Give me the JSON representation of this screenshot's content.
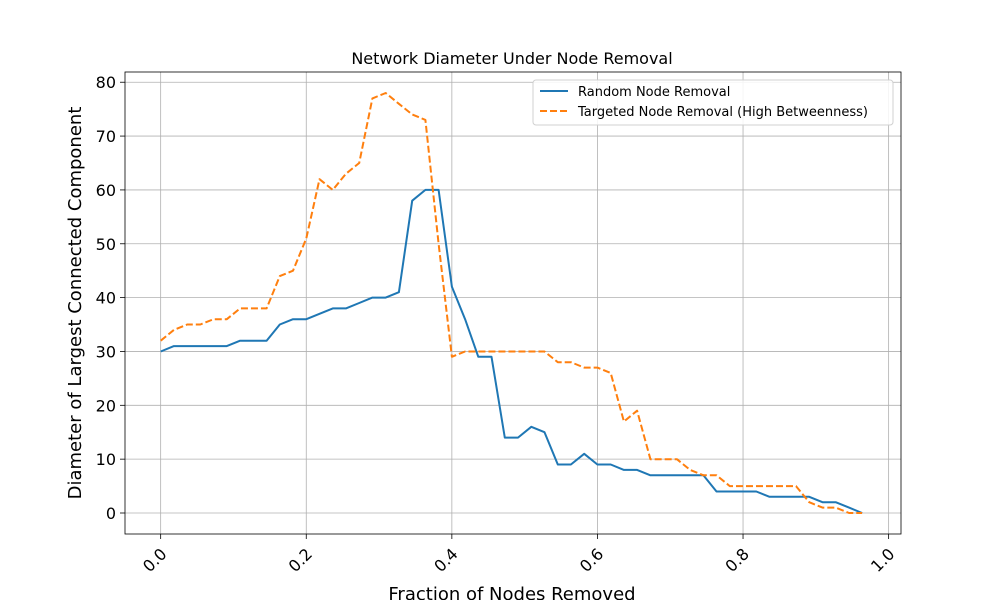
{
  "chart_data": {
    "type": "line",
    "title": "Network Diameter Under Node Removal",
    "xlabel": "Fraction of Nodes Removed",
    "ylabel": "Diameter of Largest Connected Component",
    "xlim": [
      -0.049,
      1.017
    ],
    "ylim": [
      -3.9,
      81.9
    ],
    "xticks": [
      0.0,
      0.2,
      0.4,
      0.6,
      0.8,
      1.0
    ],
    "xtick_labels": [
      "0.0",
      "0.2",
      "0.4",
      "0.6",
      "0.8",
      "1.0"
    ],
    "yticks": [
      0,
      10,
      20,
      30,
      40,
      50,
      60,
      70,
      80
    ],
    "ytick_labels": [
      "0",
      "10",
      "20",
      "30",
      "40",
      "50",
      "60",
      "70",
      "80"
    ],
    "grid": true,
    "legend_position": "top-right",
    "x": [
      0,
      0.0182,
      0.0364,
      0.0545,
      0.0727,
      0.0909,
      0.1091,
      0.1273,
      0.1455,
      0.1636,
      0.1818,
      0.2,
      0.2182,
      0.2364,
      0.2545,
      0.2727,
      0.2909,
      0.3091,
      0.3273,
      0.3455,
      0.3636,
      0.3818,
      0.4,
      0.4182,
      0.4364,
      0.4545,
      0.4727,
      0.4909,
      0.5091,
      0.5273,
      0.5455,
      0.5636,
      0.5818,
      0.6,
      0.6182,
      0.6364,
      0.6545,
      0.6727,
      0.6909,
      0.7091,
      0.7273,
      0.7455,
      0.7636,
      0.7818,
      0.8,
      0.8182,
      0.8364,
      0.8545,
      0.8727,
      0.8909,
      0.9091,
      0.9273,
      0.9455,
      0.9636
    ],
    "series": [
      {
        "name": "Random Node Removal",
        "color": "#1f77b4",
        "style": "solid",
        "values": [
          30,
          31,
          31,
          31,
          31,
          31,
          32,
          32,
          32,
          35,
          36,
          36,
          37,
          38,
          38,
          39,
          40,
          40,
          41,
          58,
          60,
          60,
          42,
          36,
          29,
          29,
          14,
          14,
          16,
          15,
          9,
          9,
          11,
          9,
          9,
          8,
          8,
          7,
          7,
          7,
          7,
          7,
          4,
          4,
          4,
          4,
          3,
          3,
          3,
          3,
          2,
          2,
          1,
          0
        ]
      },
      {
        "name": "Targeted Node Removal (High Betweenness)",
        "color": "#ff7f0e",
        "style": "dashed",
        "values": [
          32,
          34,
          35,
          35,
          36,
          36,
          38,
          38,
          38,
          44,
          45,
          51,
          62,
          60,
          63,
          65,
          77,
          78,
          76,
          74,
          73,
          50,
          29,
          30,
          30,
          30,
          30,
          30,
          30,
          30,
          28,
          28,
          27,
          27,
          26,
          17,
          19,
          10,
          10,
          10,
          8,
          7,
          7,
          5,
          5,
          5,
          5,
          5,
          5,
          2,
          1,
          1,
          0,
          0
        ]
      }
    ]
  }
}
